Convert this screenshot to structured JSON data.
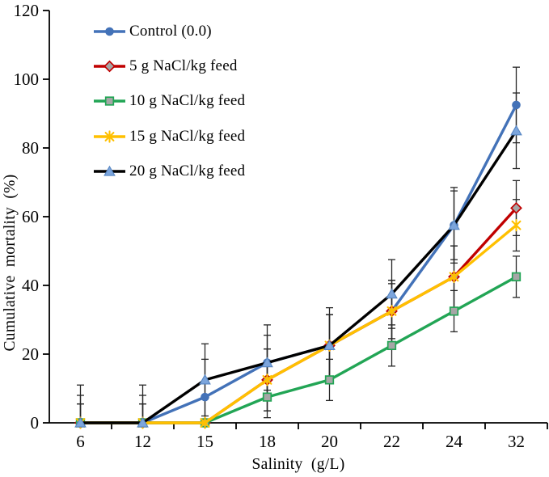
{
  "chart_data": {
    "type": "line",
    "title": "",
    "xlabel": "Salinity  (g/L)",
    "ylabel": "Cumulative  mortality  (%)",
    "categories": [
      "6",
      "12",
      "15",
      "18",
      "20",
      "22",
      "24",
      "32"
    ],
    "y_ticks": [
      0,
      20,
      40,
      60,
      80,
      100,
      120
    ],
    "ylim": [
      0,
      120
    ],
    "grid": false,
    "legend_position": "inside-top-left",
    "axis_color": "#000000",
    "error_bar_color": "#262626",
    "marker_gray_fill": "#A6A6A6",
    "series": [
      {
        "name": "Control (0.0)",
        "marker": "circle",
        "line_color": "#4372B8",
        "marker_fill": "#4372B8",
        "marker_stroke": "#3A63A0",
        "values": [
          0,
          0,
          7.5,
          17.5,
          22.5,
          32.5,
          57.5,
          92.5
        ],
        "errors": [
          8,
          8,
          11,
          8,
          9,
          8,
          10,
          11
        ]
      },
      {
        "name": "5 g NaCl/kg feed",
        "marker": "diamond",
        "line_color": "#C00000",
        "marker_fill": "#A6A6A6",
        "marker_stroke": "#C00000",
        "values": [
          0,
          0,
          0,
          12.5,
          22.5,
          32.5,
          42.5,
          62.5
        ],
        "errors": [
          5.5,
          5.5,
          0,
          9,
          9,
          9,
          9,
          8
        ]
      },
      {
        "name": "10 g NaCl/kg feed",
        "marker": "square",
        "line_color": "#22A555",
        "marker_fill": "#A6A6A6",
        "marker_stroke": "#22A555",
        "values": [
          0,
          0,
          0,
          7.5,
          12.5,
          22.5,
          32.5,
          42.5
        ],
        "errors": [
          0,
          0,
          0,
          6,
          6,
          6,
          6,
          6
        ]
      },
      {
        "name": "15 g NaCl/kg feed",
        "marker": "star",
        "line_color": "#FFC000",
        "marker_fill": "#FFC000",
        "marker_stroke": "#FFC000",
        "values": [
          0,
          0,
          0,
          12.5,
          22.5,
          32.5,
          42.5,
          57.5
        ],
        "errors": [
          5.5,
          5.5,
          0,
          9,
          9,
          9,
          9,
          7.5
        ]
      },
      {
        "name": "20 g NaCl/kg feed",
        "marker": "triangle",
        "line_color": "#000000",
        "marker_fill": "#7CA5DC",
        "marker_stroke": "#5585C2",
        "values": [
          0,
          0,
          12.5,
          17.5,
          22.5,
          37.5,
          57.5,
          85
        ],
        "errors": [
          11,
          11,
          10.5,
          11,
          11,
          10,
          11,
          11
        ]
      }
    ]
  }
}
